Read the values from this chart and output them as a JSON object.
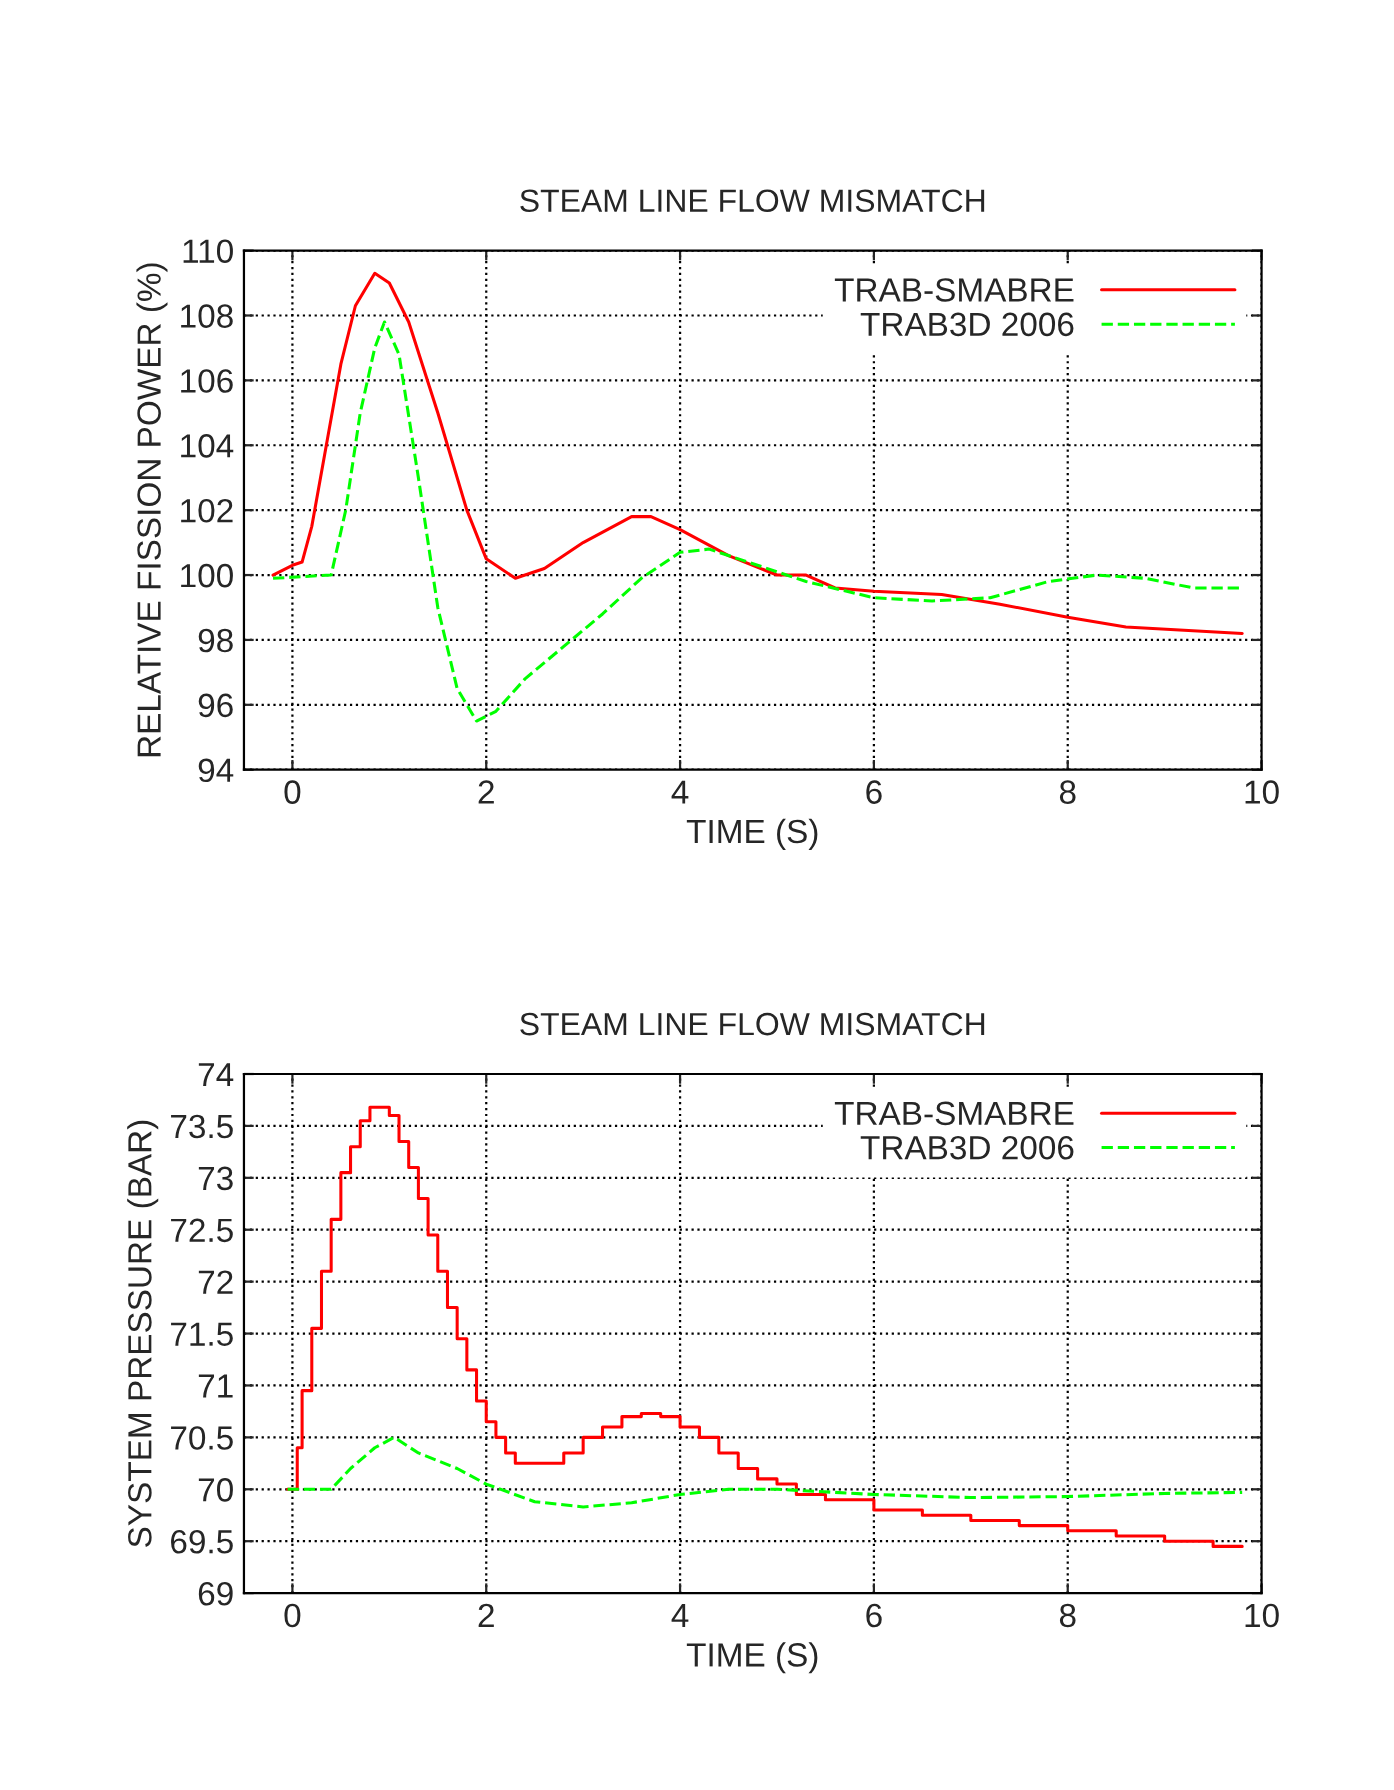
{
  "chart_data": [
    {
      "type": "line",
      "title": "STEAM LINE FLOW MISMATCH",
      "xlabel": "TIME (S)",
      "ylabel": "RELATIVE FISSION POWER (%)",
      "xlim": [
        -0.5,
        10
      ],
      "ylim": [
        94,
        110
      ],
      "xticks": [
        0,
        2,
        4,
        6,
        8,
        10
      ],
      "yticks": [
        94,
        96,
        98,
        100,
        102,
        104,
        106,
        108,
        110
      ],
      "grid": true,
      "legend": "top right",
      "series": [
        {
          "name": "TRAB-SMABRE",
          "color": "#ff0000",
          "line_style": "solid",
          "x": [
            -0.2,
            0,
            0.1,
            0.2,
            0.35,
            0.5,
            0.65,
            0.85,
            1.0,
            1.2,
            1.5,
            1.8,
            2.0,
            2.3,
            2.6,
            3.0,
            3.5,
            3.7,
            4.0,
            4.5,
            5.0,
            5.3,
            5.6,
            6.0,
            6.7,
            7.3,
            8.0,
            8.6,
            9.2,
            9.8
          ],
          "values": [
            100,
            100.3,
            100.4,
            101.5,
            104,
            106.5,
            108.3,
            109.3,
            109.0,
            107.8,
            105,
            102,
            100.5,
            99.9,
            100.2,
            101.0,
            101.8,
            101.8,
            101.4,
            100.6,
            100.0,
            100.0,
            99.6,
            99.5,
            99.4,
            99.1,
            98.7,
            98.4,
            98.3,
            98.2
          ]
        },
        {
          "name": "TRAB3D 2006",
          "color": "#00ff00",
          "line_style": "dashed",
          "x": [
            -0.2,
            0.4,
            0.55,
            0.7,
            0.85,
            0.95,
            1.1,
            1.3,
            1.5,
            1.7,
            1.9,
            2.1,
            2.4,
            2.8,
            3.2,
            3.6,
            4.0,
            4.3,
            4.7,
            5.3,
            6.0,
            6.6,
            7.2,
            7.8,
            8.3,
            8.8,
            9.3,
            9.8
          ],
          "values": [
            99.9,
            100.0,
            102,
            105,
            107,
            107.8,
            106.8,
            103,
            99,
            96.5,
            95.5,
            95.8,
            96.8,
            97.8,
            98.8,
            99.9,
            100.7,
            100.8,
            100.4,
            99.8,
            99.3,
            99.2,
            99.3,
            99.8,
            100.0,
            99.9,
            99.6,
            99.6
          ]
        }
      ]
    },
    {
      "type": "line",
      "title": "STEAM LINE FLOW MISMATCH",
      "xlabel": "TIME (S)",
      "ylabel": "SYSTEM PRESSURE (BAR)",
      "xlim": [
        -0.5,
        10
      ],
      "ylim": [
        69,
        74
      ],
      "xticks": [
        0,
        2,
        4,
        6,
        8,
        10
      ],
      "yticks": [
        69,
        69.5,
        70,
        70.5,
        71,
        71.5,
        72,
        72.5,
        73,
        73.5,
        74
      ],
      "grid": true,
      "legend": "top right",
      "series": [
        {
          "name": "TRAB-SMABRE",
          "type": "step",
          "color": "#ff0000",
          "line_style": "solid",
          "x": [
            -0.05,
            0.05,
            0.1,
            0.2,
            0.3,
            0.4,
            0.5,
            0.6,
            0.7,
            0.8,
            1.0,
            1.1,
            1.2,
            1.3,
            1.4,
            1.5,
            1.6,
            1.7,
            1.8,
            1.9,
            2.0,
            2.1,
            2.2,
            2.3,
            2.6,
            2.8,
            3.0,
            3.2,
            3.4,
            3.6,
            3.8,
            4.0,
            4.2,
            4.4,
            4.6,
            4.8,
            5.0,
            5.2,
            5.5,
            6.0,
            6.5,
            7.0,
            7.5,
            8.0,
            8.5,
            9.0,
            9.5,
            9.8
          ],
          "values": [
            70,
            70.4,
            70.95,
            71.55,
            72.1,
            72.6,
            73.05,
            73.3,
            73.55,
            73.68,
            73.6,
            73.35,
            73.1,
            72.8,
            72.45,
            72.1,
            71.75,
            71.45,
            71.15,
            70.85,
            70.65,
            70.5,
            70.35,
            70.25,
            70.25,
            70.35,
            70.5,
            70.6,
            70.7,
            70.73,
            70.7,
            70.6,
            70.5,
            70.35,
            70.2,
            70.1,
            70.05,
            69.95,
            69.9,
            69.8,
            69.75,
            69.7,
            69.65,
            69.6,
            69.55,
            69.5,
            69.45,
            69.45
          ]
        },
        {
          "name": "TRAB3D 2006",
          "color": "#00ff00",
          "line_style": "dashed",
          "x": [
            -0.05,
            0.4,
            0.6,
            0.85,
            1.05,
            1.3,
            1.7,
            2.0,
            2.5,
            3.0,
            3.5,
            4.0,
            4.5,
            5.0,
            6.0,
            7.0,
            8.0,
            9.0,
            9.8
          ],
          "values": [
            70,
            70,
            70.2,
            70.4,
            70.5,
            70.35,
            70.2,
            70.05,
            69.88,
            69.83,
            69.87,
            69.95,
            70.0,
            70.0,
            69.95,
            69.92,
            69.93,
            69.96,
            69.97
          ]
        }
      ]
    }
  ]
}
